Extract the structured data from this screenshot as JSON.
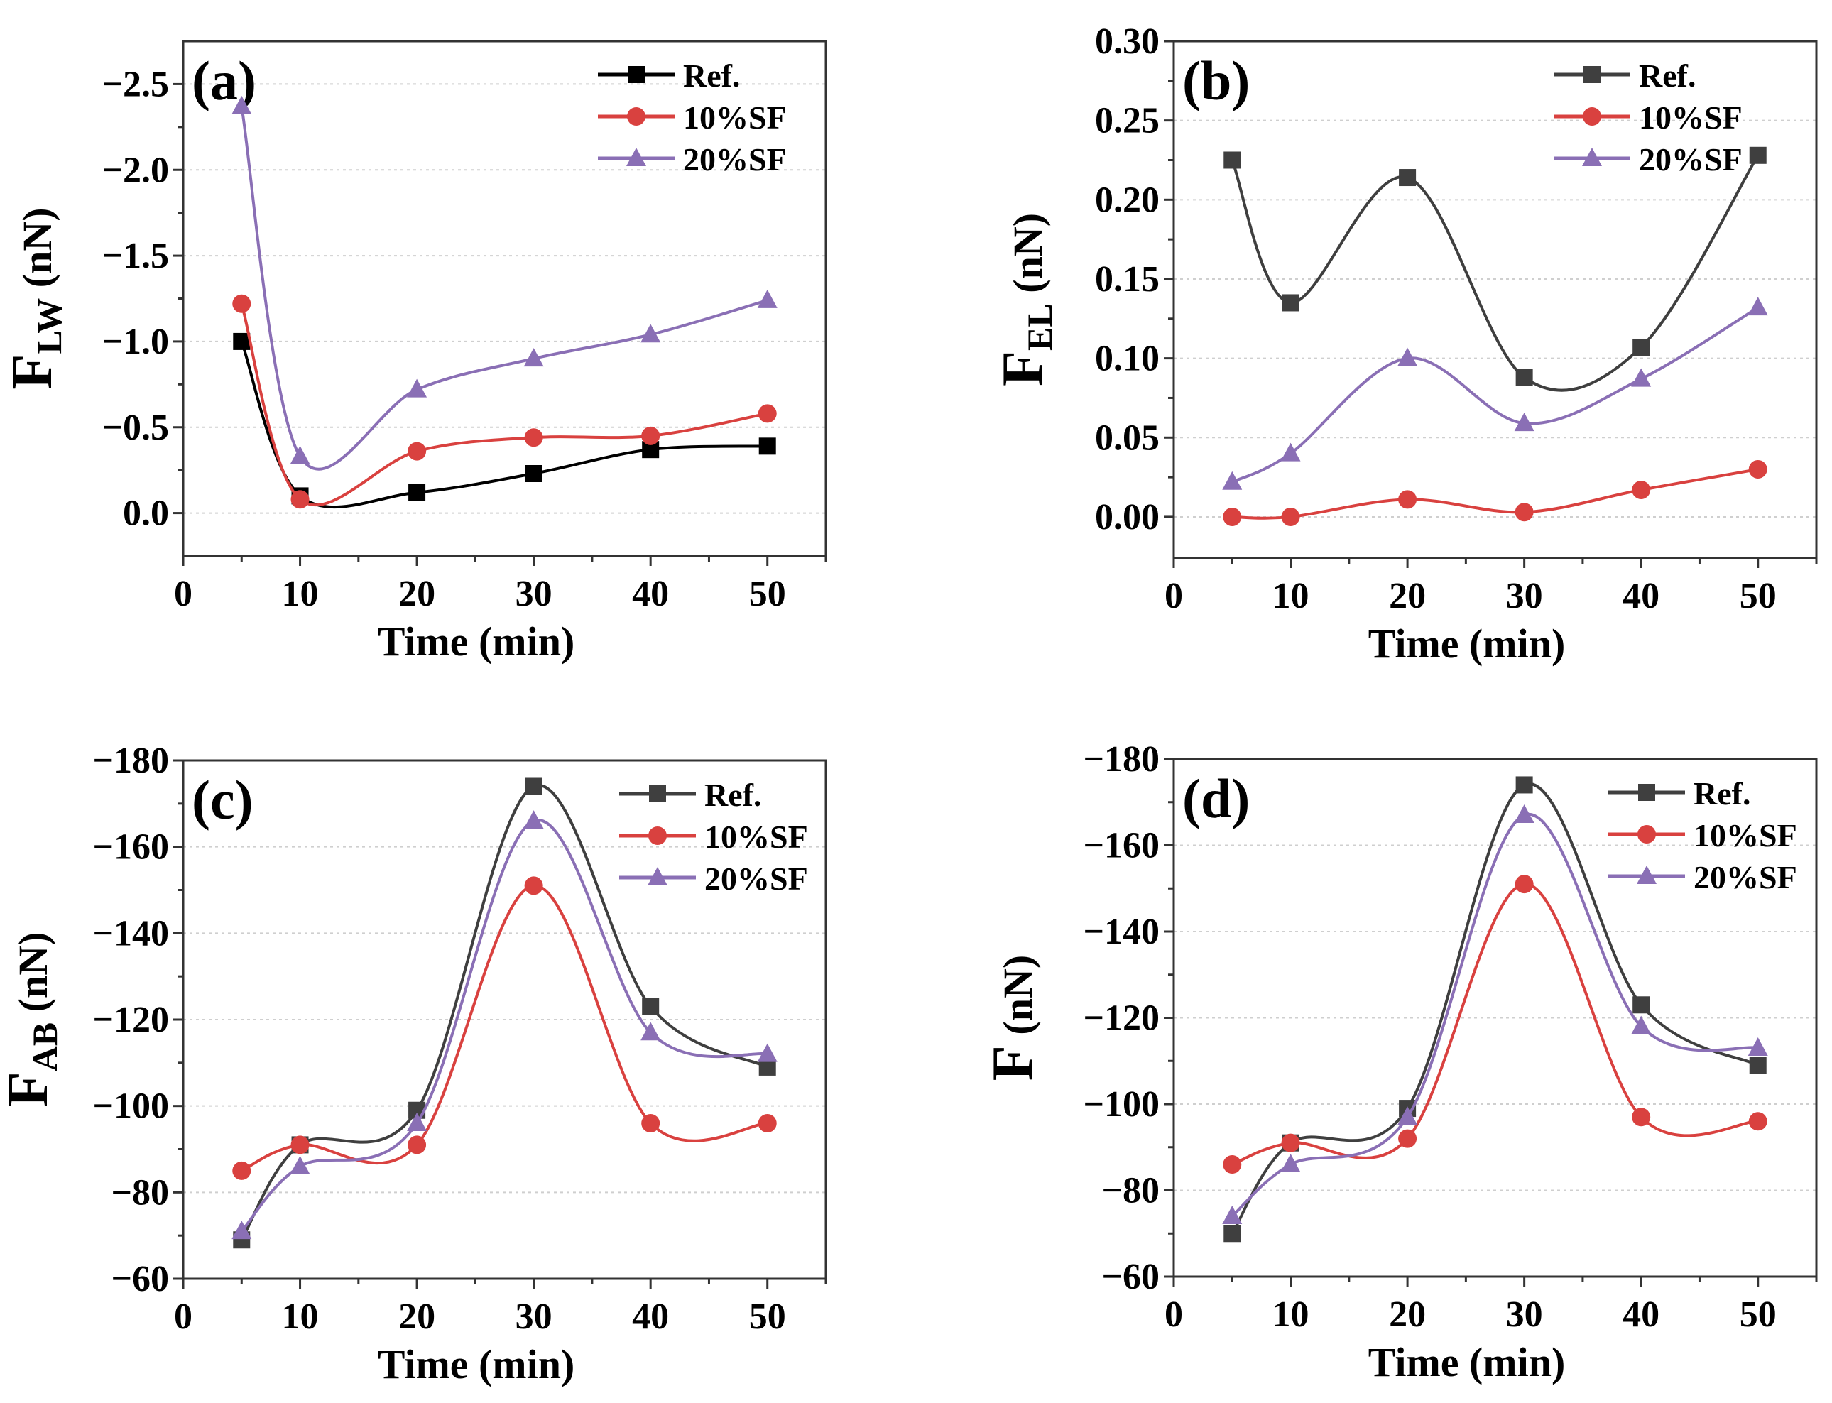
{
  "chart_data": [
    {
      "type": "line",
      "panel_label": "(a)",
      "title": "",
      "xlabel": "Time (min)",
      "ylabel": {
        "main": "F",
        "sub": "LW",
        "unit": " (nN)"
      },
      "xlim": [
        0,
        55
      ],
      "ylim": [
        0.25,
        -2.75
      ],
      "y_inverted": true,
      "xticks": [
        0,
        10,
        20,
        30,
        40,
        50
      ],
      "yticks": [
        0.0,
        -0.5,
        -1.0,
        -1.5,
        -2.0,
        -2.5
      ],
      "ytick_labels": [
        "0.0",
        "−0.5",
        "−1.0",
        "−1.5",
        "−2.0",
        "−2.5"
      ],
      "grid": true,
      "legend_position": "top-right",
      "x": [
        5,
        10,
        20,
        30,
        40,
        50
      ],
      "series": [
        {
          "name": "Ref.",
          "marker": "square",
          "color": "#000000",
          "values": [
            -1.0,
            -0.1,
            -0.12,
            -0.23,
            -0.37,
            -0.39
          ]
        },
        {
          "name": "10%SF",
          "marker": "circle",
          "color": "#d9413f",
          "values": [
            -1.22,
            -0.08,
            -0.36,
            -0.44,
            -0.45,
            -0.58
          ]
        },
        {
          "name": "20%SF",
          "marker": "triangle",
          "color": "#8a6fb5",
          "values": [
            -2.37,
            -0.33,
            -0.72,
            -0.9,
            -1.04,
            -1.24
          ]
        }
      ]
    },
    {
      "type": "line",
      "panel_label": "(b)",
      "title": "",
      "xlabel": "Time (min)",
      "ylabel": {
        "main": "F",
        "sub": "EL",
        "unit": " (nN)"
      },
      "xlim": [
        0,
        55
      ],
      "ylim": [
        -0.026,
        0.3
      ],
      "y_inverted": false,
      "xticks": [
        0,
        10,
        20,
        30,
        40,
        50
      ],
      "yticks": [
        0.0,
        0.05,
        0.1,
        0.15,
        0.2,
        0.25,
        0.3
      ],
      "ytick_labels": [
        "0.00",
        "0.05",
        "0.10",
        "0.15",
        "0.20",
        "0.25",
        "0.30"
      ],
      "grid": true,
      "legend_position": "top-right",
      "x": [
        5,
        10,
        20,
        30,
        40,
        50
      ],
      "series": [
        {
          "name": "Ref.",
          "marker": "square",
          "color": "#3f3f3f",
          "values": [
            0.225,
            0.135,
            0.214,
            0.088,
            0.107,
            0.228
          ]
        },
        {
          "name": "10%SF",
          "marker": "circle",
          "color": "#d9413f",
          "values": [
            0.0,
            0.0,
            0.011,
            0.003,
            0.017,
            0.03
          ]
        },
        {
          "name": "20%SF",
          "marker": "triangle",
          "color": "#8a6fb5",
          "values": [
            0.022,
            0.04,
            0.1,
            0.059,
            0.087,
            0.132
          ]
        }
      ]
    },
    {
      "type": "line",
      "panel_label": "(c)",
      "title": "",
      "xlabel": "Time (min)",
      "ylabel": {
        "main": "F",
        "sub": "AB",
        "unit": " (nN)"
      },
      "xlim": [
        0,
        55
      ],
      "ylim": [
        -60,
        -180
      ],
      "y_inverted": true,
      "xticks": [
        0,
        10,
        20,
        30,
        40,
        50
      ],
      "yticks": [
        -60,
        -80,
        -100,
        -120,
        -140,
        -160,
        -180
      ],
      "ytick_labels": [
        "−60",
        "−80",
        "−100",
        "−120",
        "−140",
        "−160",
        "−180"
      ],
      "grid": true,
      "legend_position": "top-right",
      "x": [
        5,
        10,
        20,
        30,
        40,
        50
      ],
      "series": [
        {
          "name": "Ref.",
          "marker": "square",
          "color": "#3f3f3f",
          "values": [
            -69,
            -91,
            -99,
            -174,
            -123,
            -109
          ]
        },
        {
          "name": "10%SF",
          "marker": "circle",
          "color": "#d9413f",
          "values": [
            -85,
            -91,
            -91,
            -151,
            -96,
            -96
          ]
        },
        {
          "name": "20%SF",
          "marker": "triangle",
          "color": "#8a6fb5",
          "values": [
            -71,
            -86,
            -96,
            -166,
            -117,
            -112
          ]
        }
      ]
    },
    {
      "type": "line",
      "panel_label": "(d)",
      "title": "",
      "xlabel": "Time (min)",
      "ylabel": {
        "main": "F",
        "sub": "",
        "unit": " (nN)"
      },
      "xlim": [
        0,
        55
      ],
      "ylim": [
        -60,
        -180
      ],
      "y_inverted": true,
      "xticks": [
        0,
        10,
        20,
        30,
        40,
        50
      ],
      "yticks": [
        -60,
        -80,
        -100,
        -120,
        -140,
        -160,
        -180
      ],
      "ytick_labels": [
        "−60",
        "−80",
        "−100",
        "−120",
        "−140",
        "−160",
        "−180"
      ],
      "grid": true,
      "legend_position": "top-right",
      "x": [
        5,
        10,
        20,
        30,
        40,
        50
      ],
      "series": [
        {
          "name": "Ref.",
          "marker": "square",
          "color": "#3f3f3f",
          "values": [
            -70,
            -91,
            -99,
            -174,
            -123,
            -109
          ]
        },
        {
          "name": "10%SF",
          "marker": "circle",
          "color": "#d9413f",
          "values": [
            -86,
            -91,
            -92,
            -151,
            -97,
            -96
          ]
        },
        {
          "name": "20%SF",
          "marker": "triangle",
          "color": "#8a6fb5",
          "values": [
            -74,
            -86,
            -97,
            -167,
            -118,
            -113
          ]
        }
      ]
    }
  ]
}
